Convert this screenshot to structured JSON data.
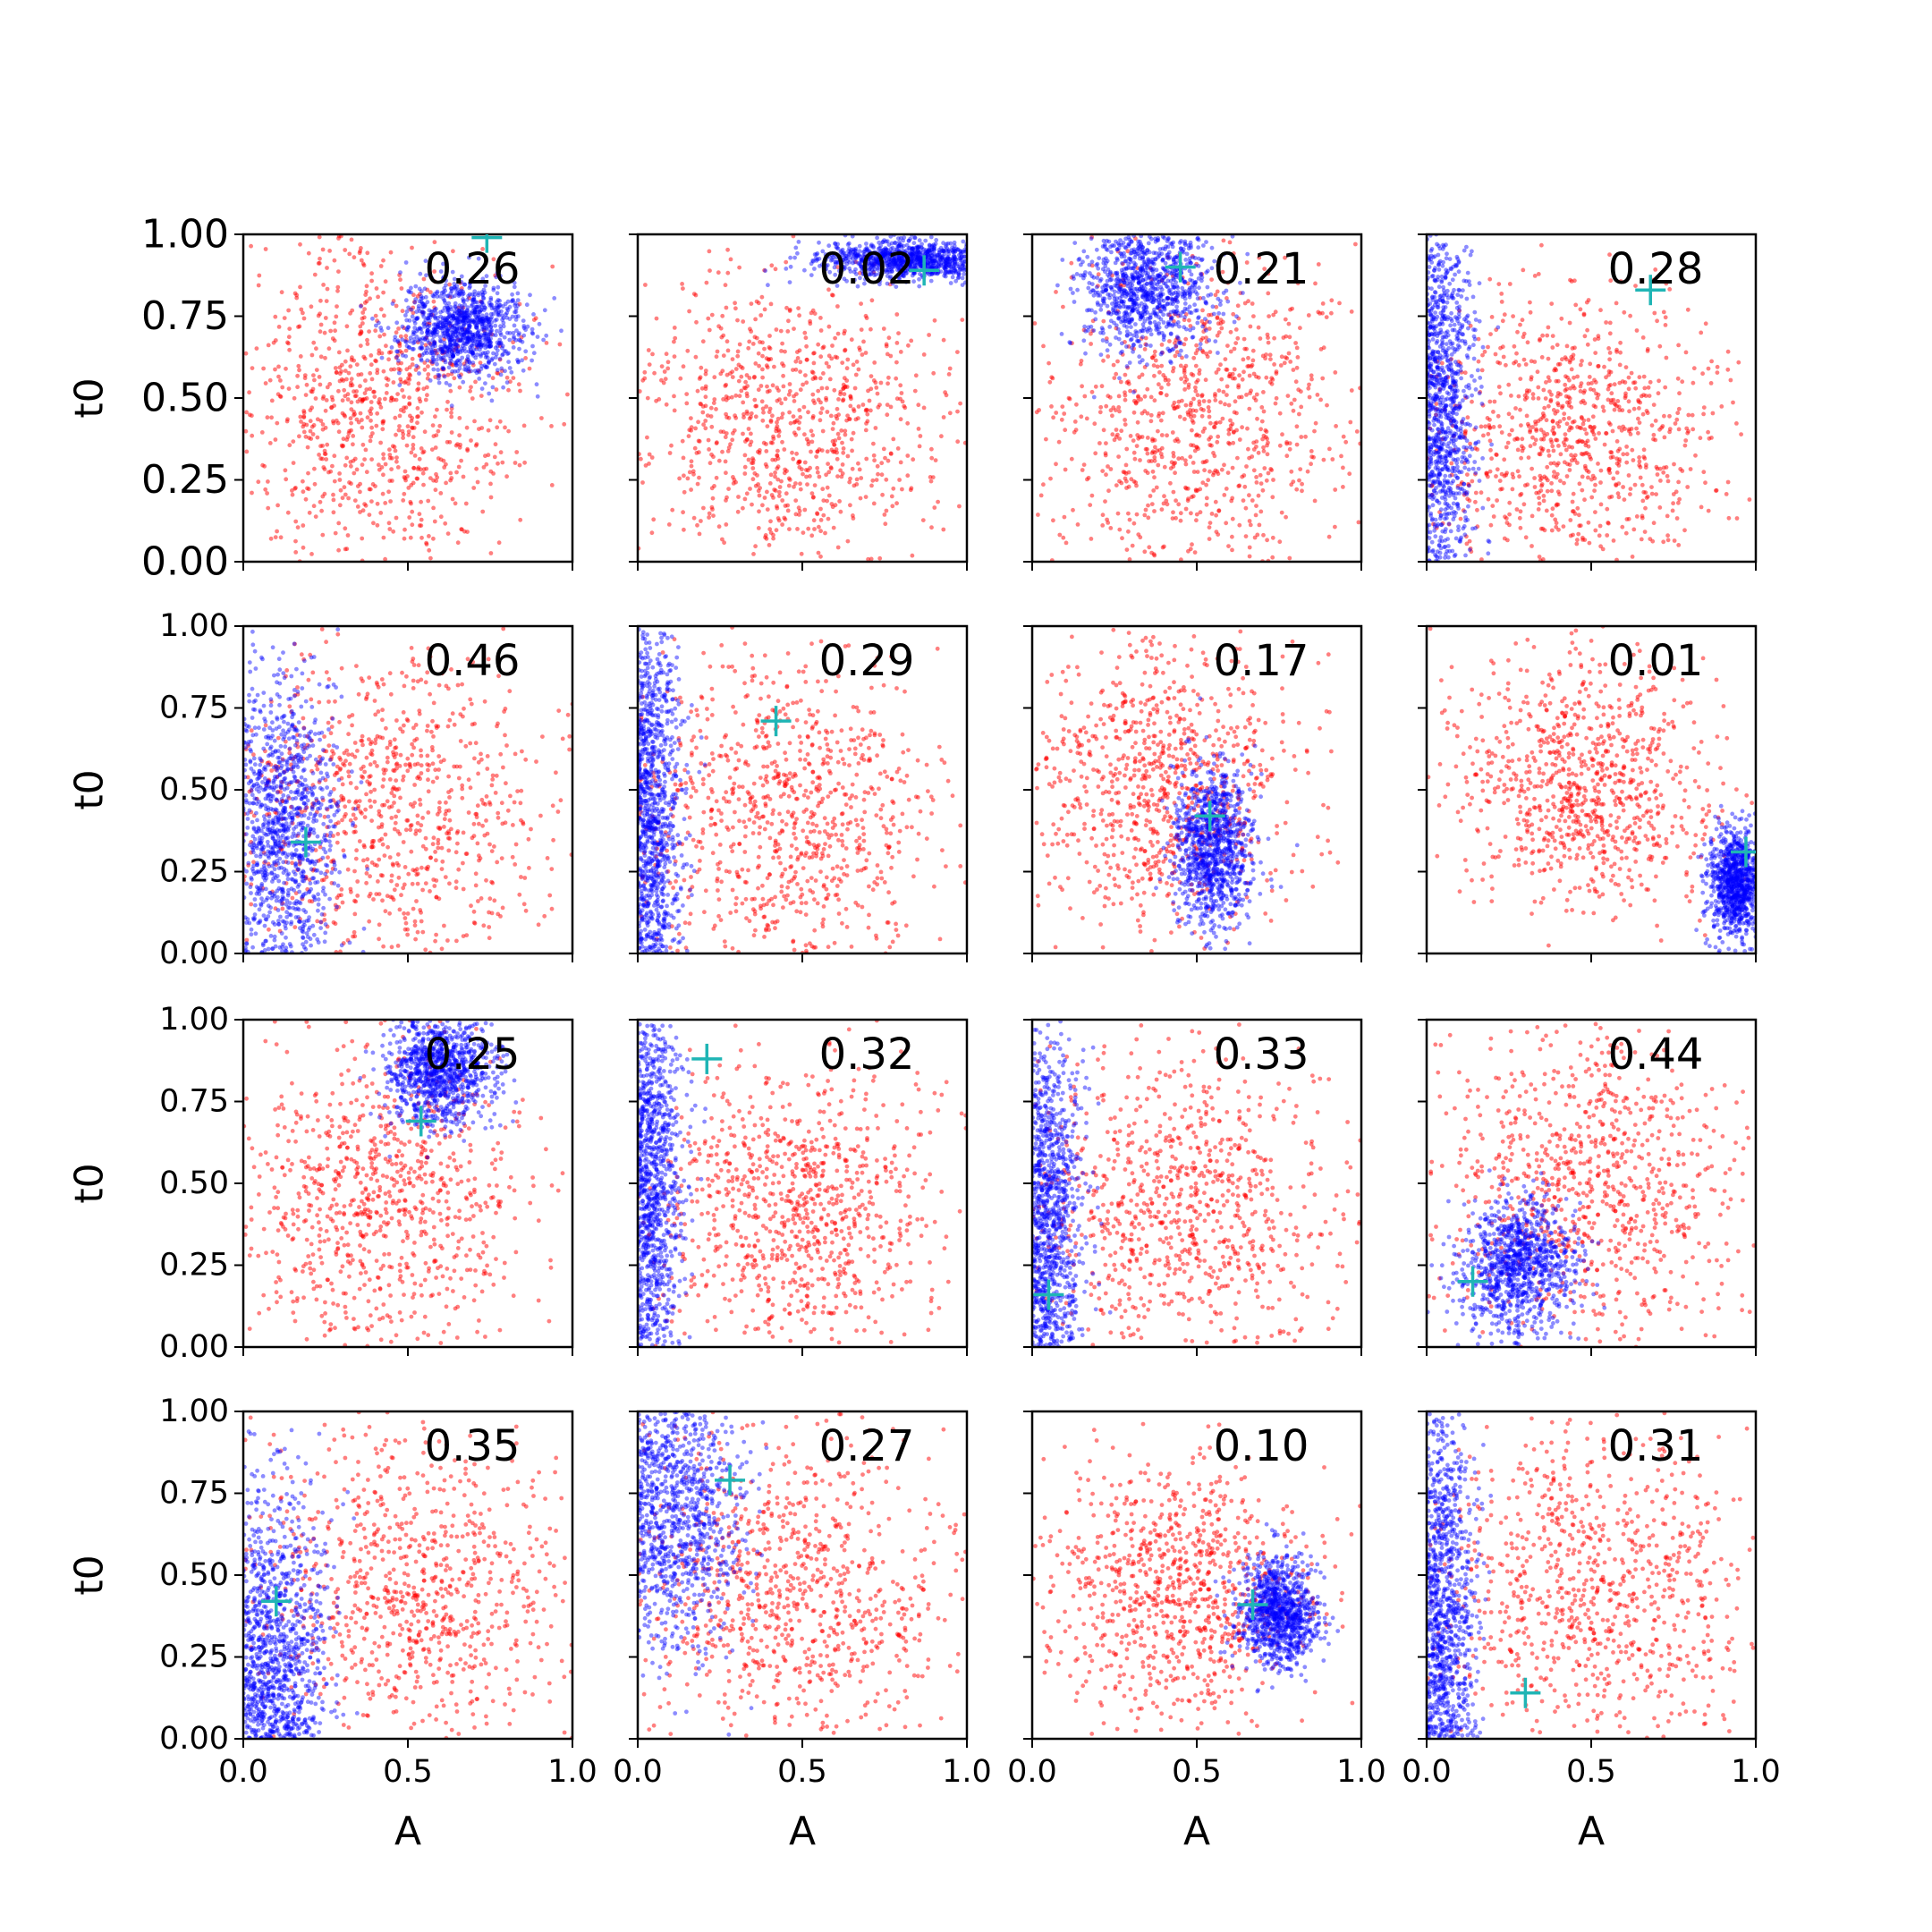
{
  "chart_data": {
    "type": "scatter",
    "title": "",
    "grid": false,
    "rows": 4,
    "cols": 4,
    "xlabel": "A",
    "ylabel": "t0",
    "xlim": [
      0,
      1
    ],
    "ylim": [
      0,
      1
    ],
    "xticks": [
      "0.0",
      "0.5",
      "1.0"
    ],
    "yticks": [
      "0.00",
      "0.25",
      "0.50",
      "0.75",
      "1.00"
    ],
    "colors": {
      "prior": "#ff0000",
      "posterior": "#0000ff",
      "marker": "#1fb5b5"
    },
    "panels": [
      {
        "value": "0.26",
        "marker": [
          0.74,
          0.99
        ],
        "prior": {
          "cx": 0.4,
          "cy": 0.48,
          "sx": 0.22,
          "sy": 0.24
        },
        "post": {
          "cx": 0.66,
          "cy": 0.71,
          "sx": 0.09,
          "sy": 0.07
        }
      },
      {
        "value": "0.02",
        "marker": [
          0.87,
          0.89
        ],
        "prior": {
          "cx": 0.45,
          "cy": 0.42,
          "sx": 0.24,
          "sy": 0.22
        },
        "post": {
          "cx": 0.82,
          "cy": 0.92,
          "sx": 0.14,
          "sy": 0.03
        }
      },
      {
        "value": "0.21",
        "marker": [
          0.45,
          0.9
        ],
        "prior": {
          "cx": 0.48,
          "cy": 0.45,
          "sx": 0.24,
          "sy": 0.25
        },
        "post": {
          "cx": 0.35,
          "cy": 0.85,
          "sx": 0.1,
          "sy": 0.1
        }
      },
      {
        "value": "0.28",
        "marker": [
          0.68,
          0.83
        ],
        "prior": {
          "cx": 0.45,
          "cy": 0.4,
          "sx": 0.23,
          "sy": 0.22
        },
        "post": {
          "cx": 0.05,
          "cy": 0.5,
          "sx": 0.05,
          "sy": 0.3
        }
      },
      {
        "value": "0.46",
        "marker": [
          0.19,
          0.34
        ],
        "prior": {
          "cx": 0.45,
          "cy": 0.45,
          "sx": 0.25,
          "sy": 0.25
        },
        "post": {
          "cx": 0.13,
          "cy": 0.38,
          "sx": 0.08,
          "sy": 0.22
        }
      },
      {
        "value": "0.29",
        "marker": [
          0.42,
          0.71
        ],
        "prior": {
          "cx": 0.45,
          "cy": 0.42,
          "sx": 0.24,
          "sy": 0.24
        },
        "post": {
          "cx": 0.04,
          "cy": 0.45,
          "sx": 0.05,
          "sy": 0.3
        }
      },
      {
        "value": "0.17",
        "marker": [
          0.54,
          0.42
        ],
        "prior": {
          "cx": 0.4,
          "cy": 0.52,
          "sx": 0.2,
          "sy": 0.22
        },
        "post": {
          "cx": 0.55,
          "cy": 0.32,
          "sx": 0.06,
          "sy": 0.12
        }
      },
      {
        "value": "0.01",
        "marker": [
          0.97,
          0.31
        ],
        "prior": {
          "cx": 0.48,
          "cy": 0.5,
          "sx": 0.2,
          "sy": 0.2
        },
        "post": {
          "cx": 0.94,
          "cy": 0.22,
          "sx": 0.04,
          "sy": 0.08
        }
      },
      {
        "value": "0.25",
        "marker": [
          0.54,
          0.69
        ],
        "prior": {
          "cx": 0.42,
          "cy": 0.45,
          "sx": 0.22,
          "sy": 0.24
        },
        "post": {
          "cx": 0.6,
          "cy": 0.85,
          "sx": 0.08,
          "sy": 0.08
        }
      },
      {
        "value": "0.32",
        "marker": [
          0.21,
          0.88
        ],
        "prior": {
          "cx": 0.48,
          "cy": 0.42,
          "sx": 0.22,
          "sy": 0.22
        },
        "post": {
          "cx": 0.04,
          "cy": 0.5,
          "sx": 0.05,
          "sy": 0.3
        }
      },
      {
        "value": "0.33",
        "marker": [
          0.05,
          0.16
        ],
        "prior": {
          "cx": 0.45,
          "cy": 0.42,
          "sx": 0.24,
          "sy": 0.24
        },
        "post": {
          "cx": 0.05,
          "cy": 0.4,
          "sx": 0.05,
          "sy": 0.3
        }
      },
      {
        "value": "0.44",
        "marker": [
          0.14,
          0.2
        ],
        "prior": {
          "cx": 0.48,
          "cy": 0.48,
          "sx": 0.24,
          "sy": 0.25
        },
        "post": {
          "cx": 0.28,
          "cy": 0.25,
          "sx": 0.09,
          "sy": 0.1
        }
      },
      {
        "value": "0.35",
        "marker": [
          0.1,
          0.42
        ],
        "prior": {
          "cx": 0.5,
          "cy": 0.45,
          "sx": 0.24,
          "sy": 0.25
        },
        "post": {
          "cx": 0.1,
          "cy": 0.25,
          "sx": 0.08,
          "sy": 0.25
        }
      },
      {
        "value": "0.27",
        "marker": [
          0.28,
          0.79
        ],
        "prior": {
          "cx": 0.48,
          "cy": 0.45,
          "sx": 0.24,
          "sy": 0.24
        },
        "post": {
          "cx": 0.12,
          "cy": 0.7,
          "sx": 0.1,
          "sy": 0.2
        }
      },
      {
        "value": "0.10",
        "marker": [
          0.67,
          0.41
        ],
        "prior": {
          "cx": 0.45,
          "cy": 0.45,
          "sx": 0.2,
          "sy": 0.2
        },
        "post": {
          "cx": 0.75,
          "cy": 0.38,
          "sx": 0.06,
          "sy": 0.08
        }
      },
      {
        "value": "0.31",
        "marker": [
          0.3,
          0.14
        ],
        "prior": {
          "cx": 0.5,
          "cy": 0.45,
          "sx": 0.24,
          "sy": 0.24
        },
        "post": {
          "cx": 0.05,
          "cy": 0.4,
          "sx": 0.05,
          "sy": 0.32
        }
      }
    ]
  }
}
